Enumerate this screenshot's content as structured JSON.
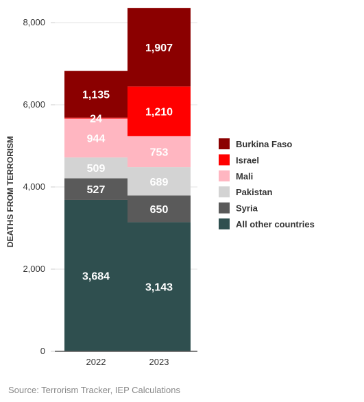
{
  "chart_data": {
    "type": "bar",
    "stacked": true,
    "categories": [
      "2022",
      "2023"
    ],
    "series": [
      {
        "name": "All other countries",
        "color": "#2f4f4f",
        "values": [
          3684,
          3143
        ],
        "labels": [
          "3,684",
          "3,143"
        ]
      },
      {
        "name": "Syria",
        "color": "#5a5a5a",
        "values": [
          527,
          650
        ],
        "labels": [
          "527",
          "650"
        ]
      },
      {
        "name": "Pakistan",
        "color": "#d3d3d3",
        "values": [
          509,
          689
        ],
        "labels": [
          "509",
          "689"
        ]
      },
      {
        "name": "Mali",
        "color": "#ffb6c1",
        "values": [
          944,
          753
        ],
        "labels": [
          "944",
          "753"
        ]
      },
      {
        "name": "Israel",
        "color": "#ff0000",
        "values": [
          24,
          1210
        ],
        "labels": [
          "24",
          "1,210"
        ]
      },
      {
        "name": "Burkina Faso",
        "color": "#8b0000",
        "values": [
          1135,
          1907
        ],
        "labels": [
          "1,135",
          "1,907"
        ]
      }
    ],
    "ylabel": "DEATHS FROM TERRORISM",
    "xlabel": "",
    "ylim": [
      0,
      8000
    ],
    "yticks": [
      0,
      2000,
      4000,
      6000,
      8000
    ],
    "ytick_labels": [
      "0",
      "2,000",
      "4,000",
      "6,000",
      "8,000"
    ],
    "grid": true,
    "legend_position": "right"
  },
  "source": "Source: Terrorism Tracker, IEP Calculations"
}
